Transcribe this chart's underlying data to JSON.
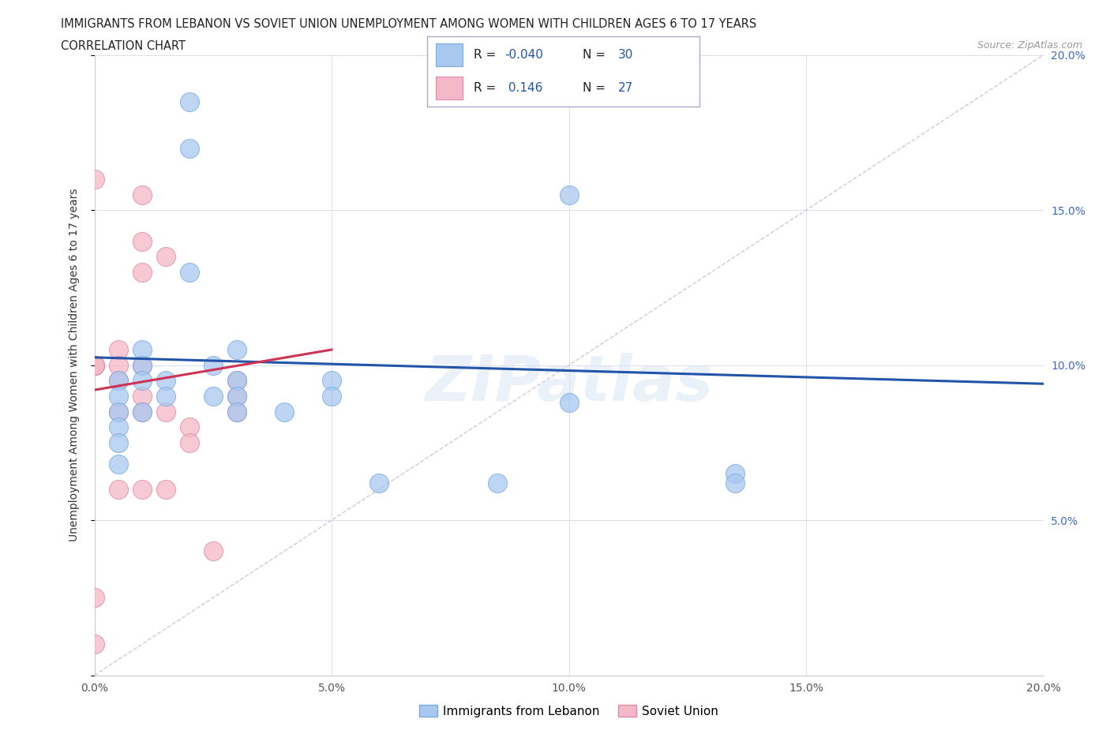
{
  "title_line1": "IMMIGRANTS FROM LEBANON VS SOVIET UNION UNEMPLOYMENT AMONG WOMEN WITH CHILDREN AGES 6 TO 17 YEARS",
  "title_line2": "CORRELATION CHART",
  "source": "Source: ZipAtlas.com",
  "ylabel": "Unemployment Among Women with Children Ages 6 to 17 years",
  "xlim": [
    0.0,
    0.2
  ],
  "ylim": [
    0.0,
    0.2
  ],
  "xtick_vals": [
    0.0,
    0.05,
    0.1,
    0.15,
    0.2
  ],
  "ytick_vals": [
    0.0,
    0.05,
    0.1,
    0.15,
    0.2
  ],
  "lebanon_color": "#a8c8f0",
  "lebanon_edge": "#7aacdc",
  "soviet_color": "#f5b8c8",
  "soviet_edge": "#e08aa8",
  "trend_lebanon_color": "#2255aa",
  "trend_soviet_color": "#cc3355",
  "diagonal_color": "#d0c8e0",
  "watermark": "ZIPatlas",
  "legend_r_lebanon": "-0.040",
  "legend_n_lebanon": "30",
  "legend_r_soviet": "0.146",
  "legend_n_soviet": "27",
  "lebanon_x": [
    0.005,
    0.005,
    0.005,
    0.005,
    0.005,
    0.005,
    0.01,
    0.01,
    0.01,
    0.01,
    0.015,
    0.015,
    0.02,
    0.02,
    0.02,
    0.025,
    0.025,
    0.03,
    0.03,
    0.03,
    0.03,
    0.04,
    0.05,
    0.05,
    0.06,
    0.085,
    0.1,
    0.1,
    0.135,
    0.135
  ],
  "lebanon_y": [
    0.095,
    0.09,
    0.085,
    0.08,
    0.075,
    0.068,
    0.105,
    0.1,
    0.095,
    0.085,
    0.095,
    0.09,
    0.185,
    0.17,
    0.13,
    0.1,
    0.09,
    0.105,
    0.095,
    0.09,
    0.085,
    0.085,
    0.095,
    0.09,
    0.062,
    0.062,
    0.155,
    0.088,
    0.065,
    0.062
  ],
  "soviet_x": [
    0.0,
    0.0,
    0.0,
    0.0,
    0.0,
    0.0,
    0.005,
    0.005,
    0.005,
    0.005,
    0.005,
    0.01,
    0.01,
    0.01,
    0.01,
    0.01,
    0.01,
    0.01,
    0.015,
    0.015,
    0.015,
    0.02,
    0.02,
    0.025,
    0.03,
    0.03,
    0.03
  ],
  "soviet_y": [
    0.1,
    0.1,
    0.1,
    0.16,
    0.025,
    0.01,
    0.105,
    0.1,
    0.095,
    0.085,
    0.06,
    0.155,
    0.14,
    0.13,
    0.1,
    0.09,
    0.085,
    0.06,
    0.135,
    0.085,
    0.06,
    0.08,
    0.075,
    0.04,
    0.095,
    0.09,
    0.085
  ],
  "leb_trend_x": [
    0.0,
    0.2
  ],
  "leb_trend_y": [
    0.1025,
    0.094
  ],
  "sov_trend_x": [
    0.0,
    0.05
  ],
  "sov_trend_y": [
    0.092,
    0.105
  ]
}
